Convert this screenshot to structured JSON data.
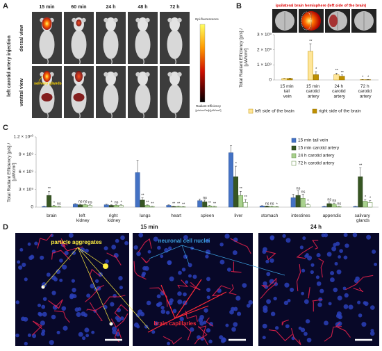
{
  "panel_a": {
    "label": "A",
    "times": [
      "15 min",
      "60 min",
      "24 h",
      "48 h",
      "72 h"
    ],
    "side_title": "left carotid artery injection",
    "views": [
      "dorsal view",
      "ventral view"
    ],
    "organ_label": "salivary glands",
    "colorbar": {
      "title": "Epi-fluorescence",
      "units": "Radiant Efficiency",
      "units_detail": "[p/s/cm²/sr]/[µW/cm²]"
    }
  },
  "chart_data": [
    {
      "type": "bar",
      "panel_label": "B",
      "title": "ipsilateral brain hemisphere (left side of the brain)",
      "ylabel": "Total Radiant Efficiency [p/s] / [µW/cm²]",
      "categories": [
        "15 min tail vein",
        "15 min carotid artery",
        "24 h carotid artery",
        "72 h carotid artery"
      ],
      "series": [
        {
          "name": "left side of the brain",
          "color": "#ffe699",
          "edge": "#bf9000",
          "values": [
            100000000,
            1900000000,
            350000000,
            20000000
          ],
          "errors": [
            20000000,
            500000000,
            100000000,
            10000000
          ],
          "annotations": [
            null,
            "**",
            "**",
            "*"
          ]
        },
        {
          "name": "right side of the brain",
          "color": "#bf9000",
          "edge": "#8c6a00",
          "values": [
            100000000,
            350000000,
            250000000,
            20000000
          ],
          "errors": [
            20000000,
            200000000,
            80000000,
            10000000
          ],
          "annotations": [
            null,
            "*",
            "**",
            "*"
          ]
        }
      ],
      "ylim": [
        0,
        3000000000
      ],
      "yticks": [
        0,
        {
          "value": 1000000000,
          "label": "1 × 10⁹"
        },
        {
          "value": 2000000000,
          "label": "2 × 10⁹"
        },
        {
          "value": 3000000000,
          "label": "3 × 10⁹"
        }
      ],
      "legend": "bottom"
    },
    {
      "type": "bar",
      "panel_label": "C",
      "ylabel": "Total Radiant Efficiency [p/s] / [µW/cm²]",
      "categories": [
        "brain",
        "left kidney",
        "right kidney",
        "lungs",
        "heart",
        "spleen",
        "liver",
        "stomach",
        "intestines",
        "appendix",
        "salivary glands"
      ],
      "series": [
        {
          "name": "15 min tail vein",
          "color": "#4472c4",
          "edge": "#2f5597",
          "values": [
            100000000,
            500000000,
            400000000,
            5900000000,
            300000000,
            1100000000,
            9300000000,
            200000000,
            1600000000,
            100000000,
            100000000
          ],
          "errors": [
            50000000,
            100000000,
            100000000,
            2100000000,
            100000000,
            300000000,
            1200000000,
            50000000,
            600000000,
            50000000,
            50000000
          ]
        },
        {
          "name": "15 min carotid artery",
          "color": "#375623",
          "edge": "#243a17",
          "values": [
            2000000000,
            400000000,
            300000000,
            1200000000,
            100000000,
            900000000,
            5200000000,
            150000000,
            2000000000,
            600000000,
            5200000000
          ],
          "errors": [
            700000000,
            100000000,
            100000000,
            400000000,
            50000000,
            300000000,
            1800000000,
            50000000,
            800000000,
            300000000,
            1500000000
          ],
          "annotations": [
            "**",
            "ns",
            "*",
            "**",
            "**",
            "ns",
            "*",
            "ns",
            "ns",
            "ns",
            "**"
          ]
        },
        {
          "name": "24 h carotid artery",
          "color": "#a9d18e",
          "edge": "#548235",
          "values": [
            200000000,
            400000000,
            300000000,
            300000000,
            100000000,
            200000000,
            2000000000,
            100000000,
            1500000000,
            500000000,
            1000000000
          ],
          "errors": [
            100000000,
            100000000,
            100000000,
            100000000,
            50000000,
            100000000,
            700000000,
            50000000,
            700000000,
            200000000,
            300000000
          ],
          "annotations": [
            "*",
            "ns",
            "ns",
            "**",
            "**",
            "**",
            "**",
            "ns",
            "ns",
            "ns",
            "*"
          ]
        },
        {
          "name": "72 h carotid artery",
          "color": "#ffffff",
          "edge": "#548235",
          "values": [
            100000000,
            300000000,
            300000000,
            100000000,
            50000000,
            100000000,
            800000000,
            50000000,
            400000000,
            100000000,
            800000000
          ],
          "errors": [
            50000000,
            100000000,
            100000000,
            50000000,
            30000000,
            50000000,
            500000000,
            30000000,
            200000000,
            50000000,
            300000000
          ],
          "annotations": [
            "ns",
            "ns",
            "*",
            "**",
            "**",
            "**",
            "**",
            "*",
            "*",
            "ns",
            "*"
          ]
        }
      ],
      "ylim": [
        0,
        12000000000
      ],
      "yticks": [
        0,
        {
          "value": 3000000000,
          "label": "3 × 10⁹"
        },
        {
          "value": 6000000000,
          "label": "6 × 10⁹"
        },
        {
          "value": 9000000000,
          "label": "9 × 10⁹"
        },
        {
          "value": 12000000000,
          "label": "1.2 × 10¹⁰"
        }
      ],
      "legend": "upper right"
    }
  ],
  "panel_d": {
    "label": "D",
    "times": [
      "15 min",
      "24 h"
    ],
    "labels": {
      "aggregates": "particle aggregates",
      "nuclei": "neuronal cell nuclei",
      "capillaries": "brain capillaries"
    }
  }
}
